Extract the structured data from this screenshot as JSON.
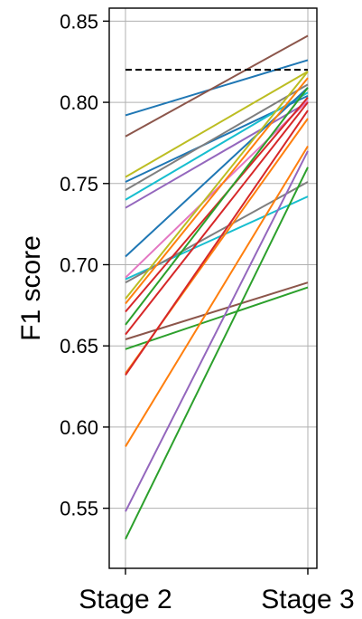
{
  "chart_data": {
    "type": "line",
    "title": "",
    "xlabel": "",
    "ylabel": "F1 score",
    "categories": [
      "Stage 2",
      "Stage 3"
    ],
    "ylim": [
      0.513,
      0.858
    ],
    "yticks": [
      0.55,
      0.6,
      0.65,
      0.7,
      0.75,
      0.8,
      0.85
    ],
    "ytick_labels": [
      "0.55",
      "0.60",
      "0.65",
      "0.70",
      "0.75",
      "0.80",
      "0.85"
    ],
    "grid": true,
    "reference_line": {
      "value": 0.82,
      "style": "dashed",
      "color": "#000000"
    },
    "series": [
      {
        "color": "#1f77b4",
        "values": [
          0.792,
          0.826
        ]
      },
      {
        "color": "#8c564b",
        "values": [
          0.779,
          0.841
        ]
      },
      {
        "color": "#bcbd22",
        "values": [
          0.754,
          0.819
        ]
      },
      {
        "color": "#1f77b4",
        "values": [
          0.751,
          0.804
        ]
      },
      {
        "color": "#7f7f7f",
        "values": [
          0.746,
          0.811
        ]
      },
      {
        "color": "#17becf",
        "values": [
          0.74,
          0.806
        ]
      },
      {
        "color": "#9467bd",
        "values": [
          0.735,
          0.8
        ]
      },
      {
        "color": "#1f77b4",
        "values": [
          0.705,
          0.809
        ]
      },
      {
        "color": "#e377c2",
        "values": [
          0.692,
          0.801
        ]
      },
      {
        "color": "#17becf",
        "values": [
          0.691,
          0.742
        ]
      },
      {
        "color": "#7f7f7f",
        "values": [
          0.689,
          0.751
        ]
      },
      {
        "color": "#bcbd22",
        "values": [
          0.679,
          0.819
        ]
      },
      {
        "color": "#ff7f0e",
        "values": [
          0.676,
          0.815
        ]
      },
      {
        "color": "#d62728",
        "values": [
          0.671,
          0.803
        ]
      },
      {
        "color": "#2ca02c",
        "values": [
          0.663,
          0.809
        ]
      },
      {
        "color": "#d62728",
        "values": [
          0.657,
          0.8
        ]
      },
      {
        "color": "#8c564b",
        "values": [
          0.654,
          0.689
        ]
      },
      {
        "color": "#2ca02c",
        "values": [
          0.648,
          0.686
        ]
      },
      {
        "color": "#ff7f0e",
        "values": [
          0.633,
          0.79
        ]
      },
      {
        "color": "#d62728",
        "values": [
          0.632,
          0.795
        ]
      },
      {
        "color": "#ff7f0e",
        "values": [
          0.588,
          0.773
        ]
      },
      {
        "color": "#9467bd",
        "values": [
          0.548,
          0.77
        ]
      },
      {
        "color": "#2ca02c",
        "values": [
          0.531,
          0.76
        ]
      }
    ]
  }
}
